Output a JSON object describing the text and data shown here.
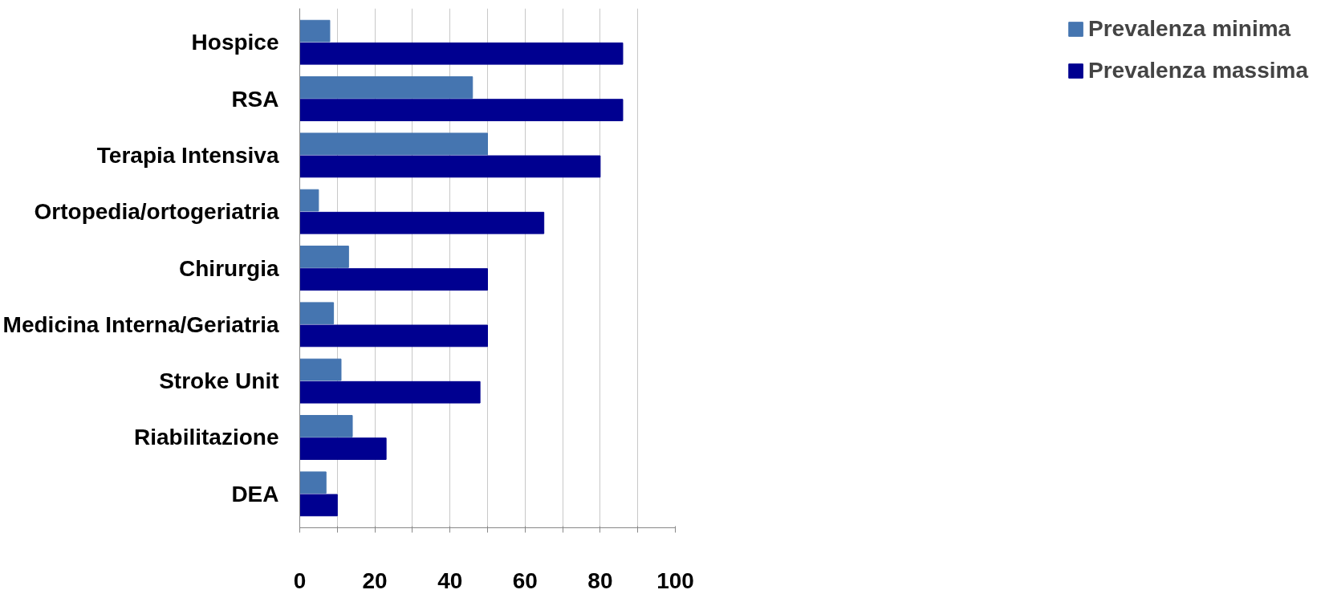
{
  "chart_data": {
    "type": "bar",
    "orientation": "horizontal",
    "categories": [
      "Hospice",
      "RSA",
      "Terapia Intensiva",
      "Ortopedia/ortogeriatria",
      "Chirurgia",
      "Medicina Interna/Geriatria",
      "Stroke Unit",
      "Riabilitazione",
      "DEA"
    ],
    "series": [
      {
        "name": "Prevalenza minima",
        "color": "#4575b0",
        "values": [
          8,
          46,
          50,
          5,
          13,
          9,
          11,
          14,
          7
        ]
      },
      {
        "name": "Prevalenza massima",
        "color": "#000090",
        "values": [
          86,
          86,
          80,
          65,
          50,
          50,
          48,
          23,
          10
        ]
      }
    ],
    "xlim": [
      0,
      100
    ],
    "xticks": [
      0,
      {
        "value": 10,
        "label": null
      },
      20,
      {
        "value": 30,
        "label": null
      },
      40,
      {
        "value": 50,
        "label": null
      },
      60,
      {
        "value": 70,
        "label": null
      },
      80,
      {
        "value": 90,
        "label": null
      },
      100
    ],
    "grid": "x",
    "legend": "right"
  }
}
